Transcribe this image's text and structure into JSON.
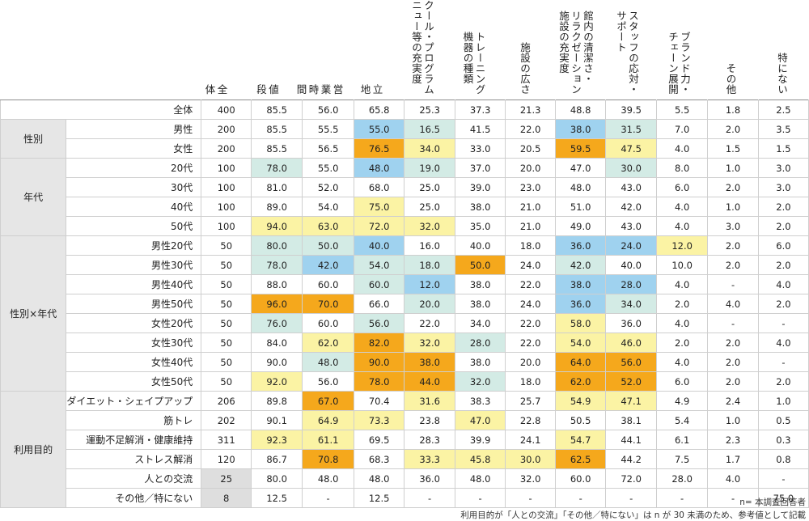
{
  "colors": {
    "orange": "#f5a81c",
    "yellow": "#fbf3a4",
    "teal": "#d3ebe5",
    "blue": "#9fd2ef",
    "gray": "#dedede",
    "group_bg": "#e6e6e6"
  },
  "notes": {
    "n_note": "n= 本調査回答者",
    "ref_note": "利用目的が「人との交流」「その他／特にない」は n が 30 未満のため、参考値として記載"
  },
  "chart_data": {
    "type": "table",
    "title": "",
    "columns": [
      "全\n体",
      "値\n段",
      "営\n業\n時\n間",
      "立\n地",
      "スクール・プログラム\nメニュー等の充実度",
      "トレーニング\n機器の種類",
      "施設の広さ",
      "館内の清潔さ・\nリラクゼーション\n施設の充実度",
      "スタッフの応対・\nサポート",
      "ブランド力・\nチェーン展開",
      "その他",
      "特にない"
    ],
    "groups": [
      {
        "label": "",
        "rows": [
          {
            "label": "全体",
            "n": "400",
            "values": [
              "85.5",
              "56.0",
              "65.8",
              "25.3",
              "37.3",
              "21.3",
              "48.8",
              "39.5",
              "5.5",
              "1.8",
              "2.5"
            ],
            "hl": [
              "",
              "",
              "",
              "",
              "",
              "",
              "",
              "",
              "",
              "",
              ""
            ]
          }
        ]
      },
      {
        "label": "性別",
        "rows": [
          {
            "label": "男性",
            "n": "200",
            "values": [
              "85.5",
              "55.5",
              "55.0",
              "16.5",
              "41.5",
              "22.0",
              "38.0",
              "31.5",
              "7.0",
              "2.0",
              "3.5"
            ],
            "hl": [
              "",
              "",
              "b",
              "t",
              "",
              "",
              "b",
              "t",
              "",
              "",
              ""
            ]
          },
          {
            "label": "女性",
            "n": "200",
            "values": [
              "85.5",
              "56.5",
              "76.5",
              "34.0",
              "33.0",
              "20.5",
              "59.5",
              "47.5",
              "4.0",
              "1.5",
              "1.5"
            ],
            "hl": [
              "",
              "",
              "o",
              "y",
              "",
              "",
              "o",
              "y",
              "",
              "",
              ""
            ]
          }
        ]
      },
      {
        "label": "年代",
        "rows": [
          {
            "label": "20代",
            "n": "100",
            "values": [
              "78.0",
              "55.0",
              "48.0",
              "19.0",
              "37.0",
              "20.0",
              "47.0",
              "30.0",
              "8.0",
              "1.0",
              "3.0"
            ],
            "hl": [
              "t",
              "",
              "b",
              "t",
              "",
              "",
              "",
              "t",
              "",
              "",
              ""
            ]
          },
          {
            "label": "30代",
            "n": "100",
            "values": [
              "81.0",
              "52.0",
              "68.0",
              "25.0",
              "39.0",
              "23.0",
              "48.0",
              "43.0",
              "6.0",
              "2.0",
              "3.0"
            ],
            "hl": [
              "",
              "",
              "",
              "",
              "",
              "",
              "",
              "",
              "",
              "",
              ""
            ]
          },
          {
            "label": "40代",
            "n": "100",
            "values": [
              "89.0",
              "54.0",
              "75.0",
              "25.0",
              "38.0",
              "21.0",
              "51.0",
              "42.0",
              "4.0",
              "1.0",
              "2.0"
            ],
            "hl": [
              "",
              "",
              "y",
              "",
              "",
              "",
              "",
              "",
              "",
              "",
              ""
            ]
          },
          {
            "label": "50代",
            "n": "100",
            "values": [
              "94.0",
              "63.0",
              "72.0",
              "32.0",
              "35.0",
              "21.0",
              "49.0",
              "43.0",
              "4.0",
              "3.0",
              "2.0"
            ],
            "hl": [
              "y",
              "y",
              "y",
              "y",
              "",
              "",
              "",
              "",
              "",
              "",
              ""
            ]
          }
        ]
      },
      {
        "label": "性別×年代",
        "rows": [
          {
            "label": "男性20代",
            "n": "50",
            "values": [
              "80.0",
              "50.0",
              "40.0",
              "16.0",
              "40.0",
              "18.0",
              "36.0",
              "24.0",
              "12.0",
              "2.0",
              "6.0"
            ],
            "hl": [
              "t",
              "t",
              "b",
              "",
              "",
              "",
              "b",
              "b",
              "y",
              "",
              ""
            ]
          },
          {
            "label": "男性30代",
            "n": "50",
            "values": [
              "78.0",
              "42.0",
              "54.0",
              "18.0",
              "50.0",
              "24.0",
              "42.0",
              "40.0",
              "10.0",
              "2.0",
              "2.0"
            ],
            "hl": [
              "t",
              "b",
              "t",
              "t",
              "o",
              "",
              "t",
              "",
              "",
              "",
              ""
            ]
          },
          {
            "label": "男性40代",
            "n": "50",
            "values": [
              "88.0",
              "60.0",
              "60.0",
              "12.0",
              "38.0",
              "22.0",
              "38.0",
              "28.0",
              "4.0",
              "-",
              "4.0"
            ],
            "hl": [
              "",
              "",
              "t",
              "b",
              "",
              "",
              "b",
              "b",
              "",
              "",
              ""
            ]
          },
          {
            "label": "男性50代",
            "n": "50",
            "values": [
              "96.0",
              "70.0",
              "66.0",
              "20.0",
              "38.0",
              "24.0",
              "36.0",
              "34.0",
              "2.0",
              "4.0",
              "2.0"
            ],
            "hl": [
              "o",
              "o",
              "",
              "t",
              "",
              "",
              "b",
              "t",
              "",
              "",
              ""
            ]
          },
          {
            "label": "女性20代",
            "n": "50",
            "values": [
              "76.0",
              "60.0",
              "56.0",
              "22.0",
              "34.0",
              "22.0",
              "58.0",
              "36.0",
              "4.0",
              "-",
              "-"
            ],
            "hl": [
              "t",
              "",
              "t",
              "",
              "",
              "",
              "y",
              "",
              "",
              "",
              ""
            ]
          },
          {
            "label": "女性30代",
            "n": "50",
            "values": [
              "84.0",
              "62.0",
              "82.0",
              "32.0",
              "28.0",
              "22.0",
              "54.0",
              "46.0",
              "2.0",
              "2.0",
              "4.0"
            ],
            "hl": [
              "",
              "y",
              "o",
              "y",
              "t",
              "",
              "y",
              "y",
              "",
              "",
              ""
            ]
          },
          {
            "label": "女性40代",
            "n": "50",
            "values": [
              "90.0",
              "48.0",
              "90.0",
              "38.0",
              "38.0",
              "20.0",
              "64.0",
              "56.0",
              "4.0",
              "2.0",
              "-"
            ],
            "hl": [
              "",
              "t",
              "o",
              "o",
              "",
              "",
              "o",
              "o",
              "",
              "",
              ""
            ]
          },
          {
            "label": "女性50代",
            "n": "50",
            "values": [
              "92.0",
              "56.0",
              "78.0",
              "44.0",
              "32.0",
              "18.0",
              "62.0",
              "52.0",
              "6.0",
              "2.0",
              "2.0"
            ],
            "hl": [
              "y",
              "",
              "o",
              "o",
              "t",
              "",
              "o",
              "o",
              "",
              "",
              ""
            ]
          }
        ]
      },
      {
        "label": "利用目的",
        "rows": [
          {
            "label": "ダイエット・シェイプアップ",
            "n": "206",
            "values": [
              "89.8",
              "67.0",
              "70.4",
              "31.6",
              "38.3",
              "25.7",
              "54.9",
              "47.1",
              "4.9",
              "2.4",
              "1.0"
            ],
            "hl": [
              "",
              "o",
              "",
              "y",
              "",
              "",
              "y",
              "y",
              "",
              "",
              ""
            ]
          },
          {
            "label": "筋トレ",
            "n": "202",
            "values": [
              "90.1",
              "64.9",
              "73.3",
              "23.8",
              "47.0",
              "22.8",
              "50.5",
              "38.1",
              "5.4",
              "1.0",
              "0.5"
            ],
            "hl": [
              "",
              "y",
              "y",
              "",
              "y",
              "",
              "",
              "",
              "",
              "",
              ""
            ]
          },
          {
            "label": "運動不足解消・健康維持",
            "n": "311",
            "values": [
              "92.3",
              "61.1",
              "69.5",
              "28.3",
              "39.9",
              "24.1",
              "54.7",
              "44.1",
              "6.1",
              "2.3",
              "0.3"
            ],
            "hl": [
              "y",
              "y",
              "",
              "",
              "",
              "",
              "y",
              "",
              "",
              "",
              ""
            ]
          },
          {
            "label": "ストレス解消",
            "n": "120",
            "values": [
              "86.7",
              "70.8",
              "68.3",
              "33.3",
              "45.8",
              "30.0",
              "62.5",
              "44.2",
              "7.5",
              "1.7",
              "0.8"
            ],
            "hl": [
              "",
              "o",
              "",
              "y",
              "y",
              "y",
              "o",
              "",
              "",
              "",
              ""
            ]
          },
          {
            "label": "人との交流",
            "n": "25",
            "values": [
              "80.0",
              "48.0",
              "48.0",
              "36.0",
              "48.0",
              "32.0",
              "60.0",
              "72.0",
              "28.0",
              "4.0",
              "-"
            ],
            "hl": [
              "",
              "",
              "",
              "",
              "",
              "",
              "",
              "",
              "",
              "",
              ""
            ],
            "ngray": true
          },
          {
            "label": "その他／特にない",
            "n": "8",
            "values": [
              "12.5",
              "-",
              "12.5",
              "-",
              "-",
              "-",
              "-",
              "-",
              "-",
              "-",
              "75.0"
            ],
            "hl": [
              "",
              "",
              "",
              "",
              "",
              "",
              "",
              "",
              "",
              "",
              ""
            ],
            "ngray": true
          }
        ]
      }
    ]
  }
}
